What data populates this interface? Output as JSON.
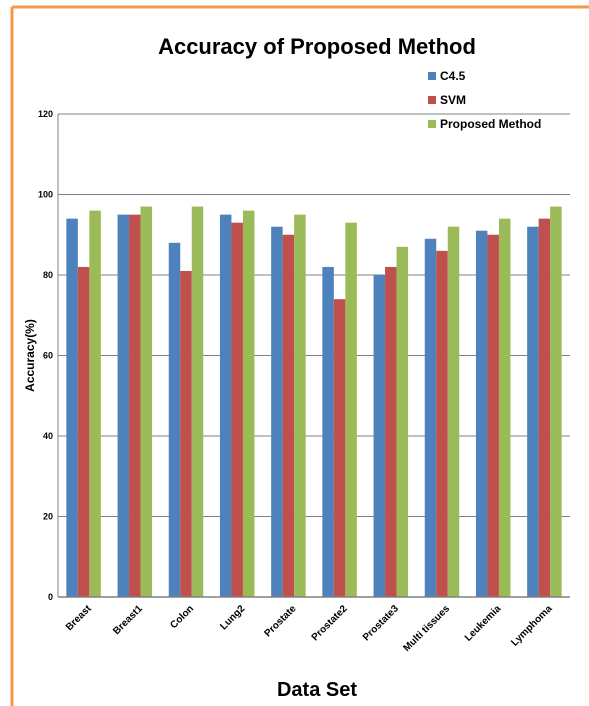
{
  "chart_data": {
    "type": "bar",
    "title": "Accuracy of Proposed Method",
    "xlabel": "Data Set",
    "ylabel": "Accuracy(%)",
    "ylim": [
      0,
      120
    ],
    "yticks": [
      0,
      20,
      40,
      60,
      80,
      100,
      120
    ],
    "grid": true,
    "legend_position": "top-right",
    "categories": [
      "Breast",
      "Breast1",
      "Colon",
      "Lung2",
      "Prostate",
      "Prostate2",
      "Prostate3",
      "Multi tissues",
      "Leukemia",
      "Lymphoma"
    ],
    "series": [
      {
        "name": "C4.5",
        "color": "#4f81bd",
        "values": [
          94,
          95,
          88,
          95,
          92,
          82,
          80,
          89,
          91,
          92
        ]
      },
      {
        "name": "SVM",
        "color": "#c0504d",
        "values": [
          82,
          95,
          81,
          93,
          90,
          74,
          82,
          86,
          90,
          94
        ]
      },
      {
        "name": "Proposed Method",
        "color": "#9bbb59",
        "values": [
          96,
          97,
          97,
          96,
          95,
          93,
          87,
          92,
          94,
          97
        ]
      }
    ]
  },
  "colors": {
    "frame_border": "#f79646",
    "gridline": "#808080",
    "axis": "#808080"
  }
}
